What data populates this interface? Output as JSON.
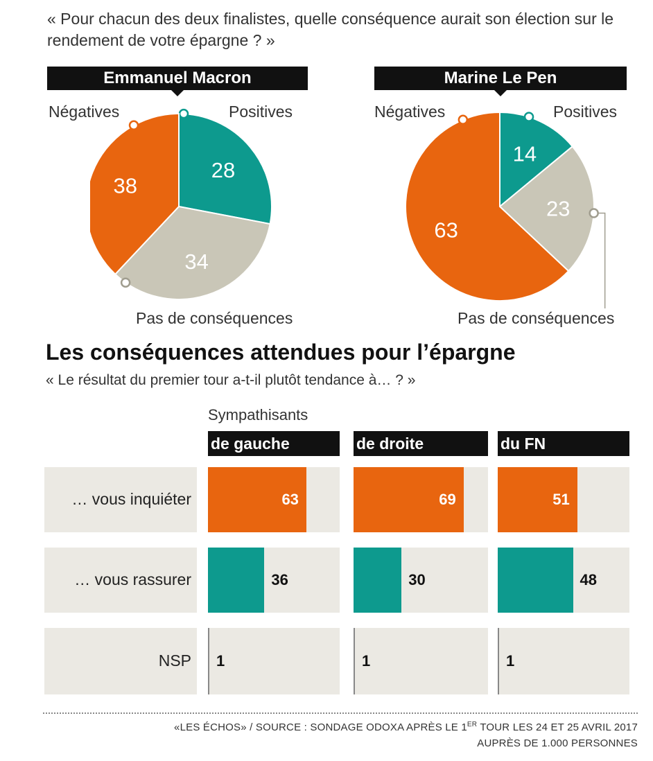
{
  "question": "« Pour chacun des deux finalistes, quelle conséquence aurait son élection sur le rendement de votre épargne ? »",
  "colors": {
    "negative": "#e8650f",
    "positive": "#0d9a8e",
    "neutral": "#c9c6b7",
    "background_cell": "#ebe9e3",
    "header": "#111111"
  },
  "chart_data": [
    {
      "type": "pie",
      "title": "Emmanuel Macron",
      "slices": [
        {
          "name": "Positives",
          "value": 28,
          "color": "#0d9a8e"
        },
        {
          "name": "Pas de conséquences",
          "value": 34,
          "color": "#c9c6b7"
        },
        {
          "name": "Négatives",
          "value": 38,
          "color": "#e8650f"
        }
      ]
    },
    {
      "type": "pie",
      "title": "Marine Le Pen",
      "slices": [
        {
          "name": "Positives",
          "value": 14,
          "color": "#0d9a8e"
        },
        {
          "name": "Pas de conséquences",
          "value": 23,
          "color": "#c9c6b7"
        },
        {
          "name": "Négatives",
          "value": 63,
          "color": "#e8650f"
        }
      ]
    },
    {
      "type": "bar",
      "title": "Les conséquences attendues pour l’épargne",
      "subtitle": "« Le résultat du premier tour a-t-il plutôt tendance à… ? »",
      "group_label": "Sympathisants",
      "categories": [
        "… vous inquiéter",
        "… vous rassurer",
        "NSP"
      ],
      "xlim": [
        0,
        100
      ],
      "series": [
        {
          "name": "de gauche",
          "values": [
            63,
            36,
            1
          ]
        },
        {
          "name": "de droite",
          "values": [
            69,
            30,
            1
          ]
        },
        {
          "name": "du FN",
          "values": [
            51,
            48,
            1
          ]
        }
      ],
      "row_colors": [
        "#e8650f",
        "#0d9a8e",
        "#888888"
      ]
    }
  ],
  "footer": {
    "line1_pre": "«LES ÉCHOS» / SOURCE : SONDAGE ODOXA APRÈS LE 1",
    "line1_sup": "ER",
    "line1_post": " TOUR LES 24 ET 25 AVRIL 2017",
    "line2": "AUPRÈS DE 1.000 PERSONNES"
  }
}
